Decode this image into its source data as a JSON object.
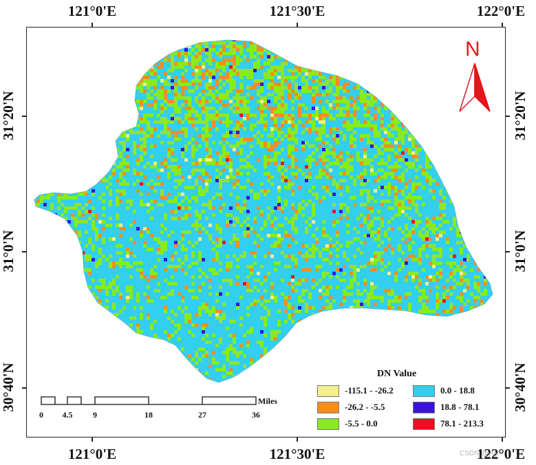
{
  "map": {
    "longitude_labels": [
      "121°0'E",
      "121°30'E",
      "122°0'E"
    ],
    "latitude_labels": [
      "31°20'N",
      "31°0'N",
      "30°40'N"
    ],
    "north_arrow": {
      "label": "N",
      "icon": "north-arrow-icon",
      "color": "#e8141b"
    },
    "legend": {
      "title": "DN Value",
      "items": [
        {
          "range": "-115.1 - -26.2",
          "color": "#f3ef8b"
        },
        {
          "range": "0.0 - 18.8",
          "color": "#33cfef"
        },
        {
          "range": "-26.2 - -5.5",
          "color": "#f78d1e"
        },
        {
          "range": "18.8 - 78.1",
          "color": "#3b12e0"
        },
        {
          "range": "-5.5 - 0.0",
          "color": "#8aea1c"
        },
        {
          "range": "78.1 - 213.3",
          "color": "#ee1020"
        }
      ]
    },
    "scale_bar": {
      "labels": [
        "0",
        "4.5",
        "9",
        "18",
        "27",
        "36"
      ],
      "unit": "Miles"
    },
    "watermark": "CSDN @yyy"
  }
}
